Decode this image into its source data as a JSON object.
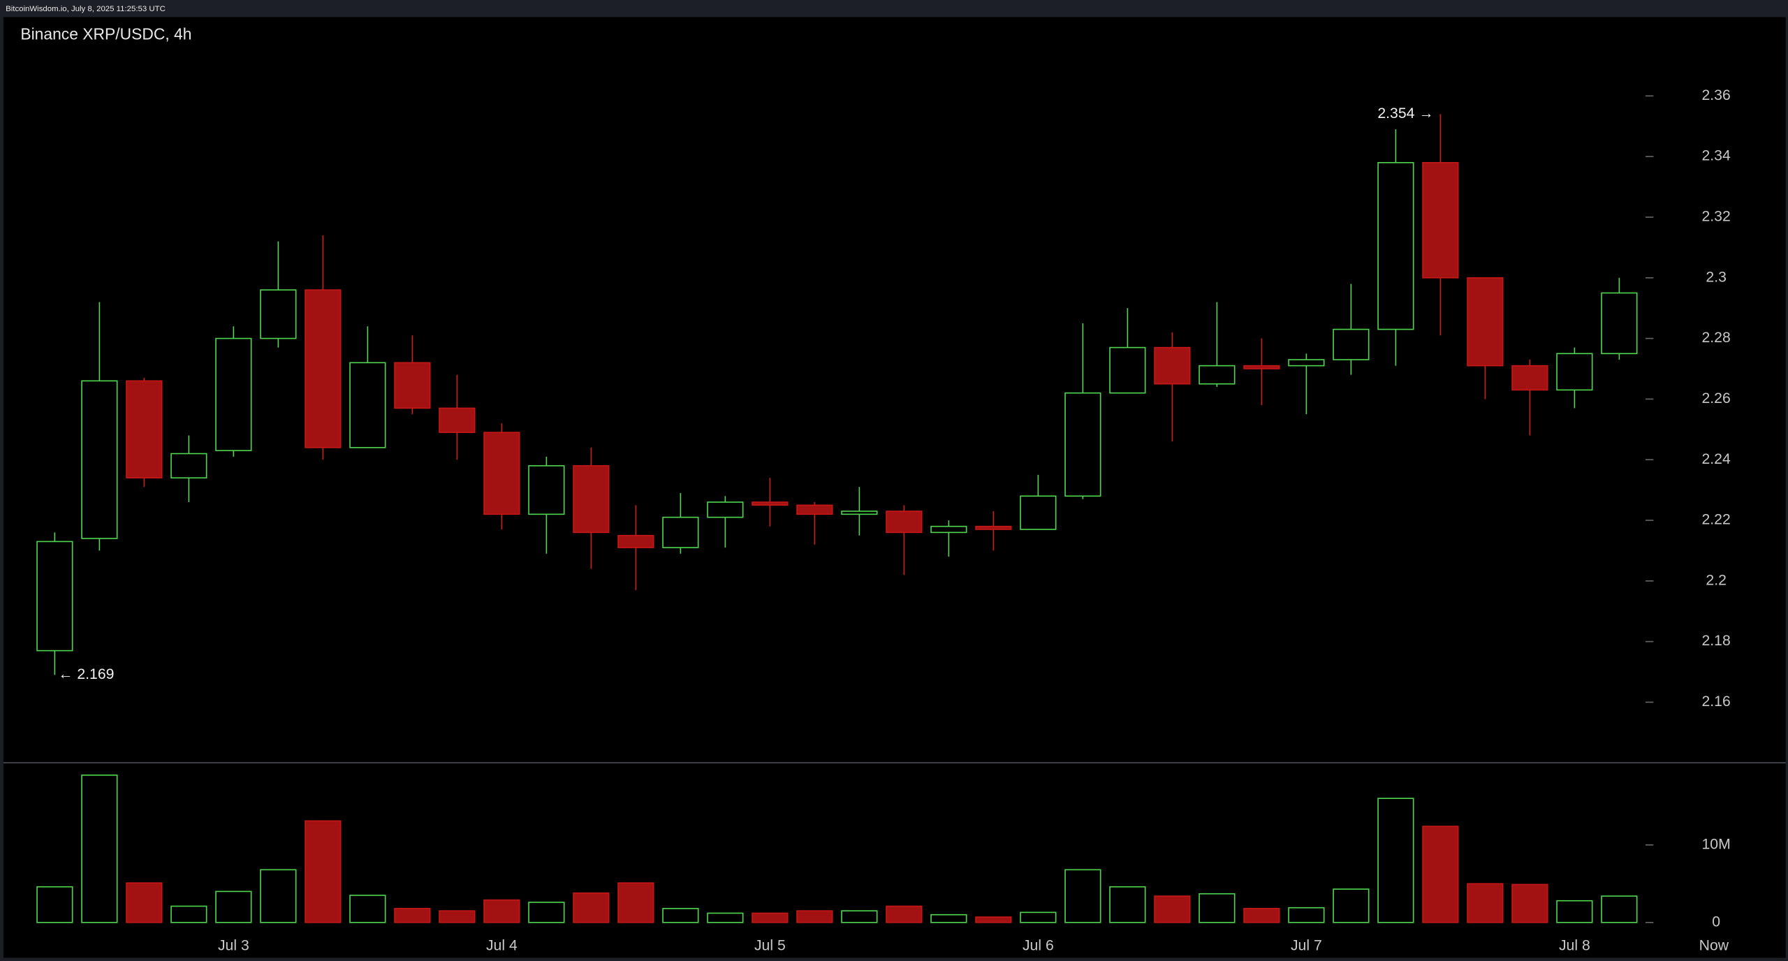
{
  "header": "BitcoinWisdom.io, July 8, 2025 11:25:53 UTC",
  "chart_data": [
    {
      "type": "candlestick",
      "title": "Binance XRP/USDC, 4h",
      "open": [
        2.177,
        2.214,
        2.266,
        2.234,
        2.243,
        2.28,
        2.296,
        2.244,
        2.272,
        2.257,
        2.249,
        2.222,
        2.238,
        2.215,
        2.211,
        2.221,
        2.226,
        2.225,
        2.222,
        2.223,
        2.216,
        2.218,
        2.217,
        2.228,
        2.262,
        2.277,
        2.265,
        2.271,
        2.271,
        2.273,
        2.283,
        2.338,
        2.3,
        2.271,
        2.263,
        2.275
      ],
      "high": [
        2.216,
        2.292,
        2.267,
        2.248,
        2.284,
        2.312,
        2.314,
        2.284,
        2.281,
        2.268,
        2.252,
        2.241,
        2.244,
        2.225,
        2.229,
        2.228,
        2.234,
        2.226,
        2.231,
        2.225,
        2.22,
        2.223,
        2.235,
        2.285,
        2.29,
        2.282,
        2.292,
        2.28,
        2.275,
        2.298,
        2.349,
        2.354,
        2.3,
        2.273,
        2.277,
        2.3
      ],
      "low": [
        2.169,
        2.21,
        2.231,
        2.226,
        2.241,
        2.277,
        2.24,
        2.244,
        2.255,
        2.24,
        2.217,
        2.209,
        2.204,
        2.197,
        2.209,
        2.211,
        2.218,
        2.212,
        2.215,
        2.202,
        2.208,
        2.21,
        2.217,
        2.227,
        2.262,
        2.246,
        2.264,
        2.258,
        2.255,
        2.268,
        2.271,
        2.281,
        2.26,
        2.248,
        2.257,
        2.273
      ],
      "close": [
        2.213,
        2.266,
        2.234,
        2.242,
        2.28,
        2.296,
        2.244,
        2.272,
        2.257,
        2.249,
        2.222,
        2.238,
        2.216,
        2.211,
        2.221,
        2.226,
        2.225,
        2.222,
        2.223,
        2.216,
        2.218,
        2.217,
        2.228,
        2.262,
        2.277,
        2.265,
        2.271,
        2.27,
        2.273,
        2.283,
        2.338,
        2.3,
        2.271,
        2.263,
        2.275,
        2.295
      ],
      "up_color": "#4ed44e",
      "down_color": "#a31212",
      "ylim": [
        2.14,
        2.386
      ],
      "yticks": [
        2.16,
        2.18,
        2.2,
        2.22,
        2.24,
        2.26,
        2.28,
        2.3,
        2.32,
        2.34,
        2.36
      ],
      "annotations": [
        {
          "label": "2.354 →",
          "value": 2.354
        },
        {
          "label": "← 2.169",
          "value": 2.169
        }
      ]
    },
    {
      "type": "bar",
      "categories": [
        null,
        null,
        null,
        null,
        "Jul 3",
        null,
        null,
        null,
        null,
        null,
        "Jul 4",
        null,
        null,
        null,
        null,
        null,
        "Jul 5",
        null,
        null,
        null,
        null,
        null,
        "Jul 6",
        null,
        null,
        null,
        null,
        null,
        "Jul 7",
        null,
        null,
        null,
        null,
        null,
        "Jul 8",
        null
      ],
      "end_label": "Now",
      "values": [
        4600000,
        19000000,
        5100000,
        2100000,
        4000000,
        6800000,
        13100000,
        3500000,
        1800000,
        1500000,
        2900000,
        2600000,
        3800000,
        5100000,
        1800000,
        1200000,
        1200000,
        1500000,
        1500000,
        2100000,
        1000000,
        700000,
        1300000,
        6800000,
        4600000,
        3400000,
        3700000,
        1800000,
        1900000,
        4300000,
        16000000,
        12400000,
        5000000,
        4900000,
        2800000,
        3400000
      ],
      "ylim": [
        0,
        20000000
      ],
      "yticks": [
        0,
        {
          "value": 10000000,
          "label": "10M"
        }
      ]
    }
  ]
}
